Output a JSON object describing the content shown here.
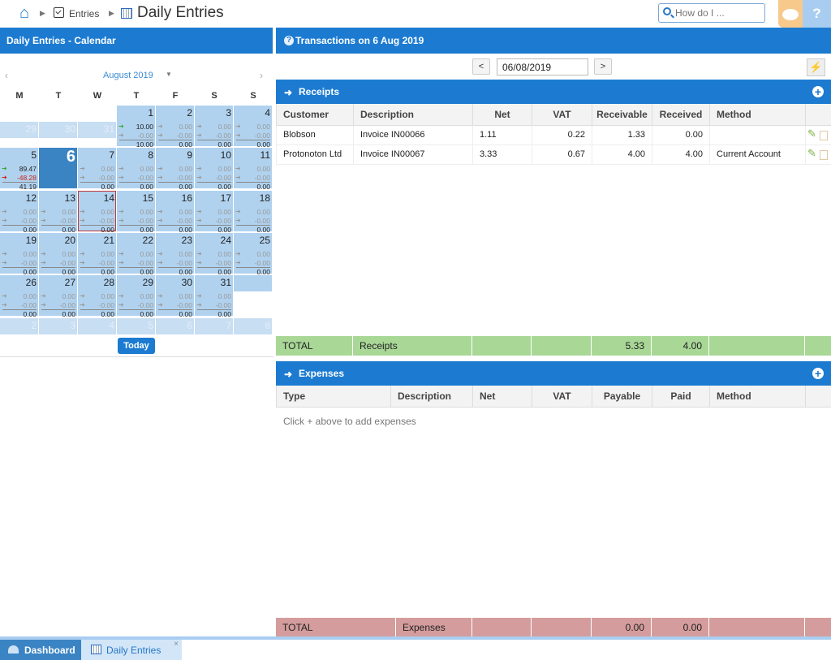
{
  "breadcrumb": {
    "entries_label": "Entries",
    "title": "Daily Entries"
  },
  "search": {
    "placeholder": "How do I ..."
  },
  "help_label": "?",
  "calendar": {
    "header": "Daily Entries - Calendar",
    "prev": "‹",
    "next": "›",
    "month_label": "August 2019",
    "weekdays": [
      "M",
      "T",
      "W",
      "T",
      "F",
      "S",
      "S"
    ],
    "today_button": "Today",
    "prev_month_days": [
      "29",
      "30",
      "31"
    ],
    "next_month_days": [
      "2",
      "3",
      "4",
      "5",
      "6",
      "7",
      "8"
    ],
    "days": [
      {
        "d": "1",
        "in": "10.00",
        "out": "-0.00",
        "tot": "10.00",
        "in_active": true
      },
      {
        "d": "2",
        "in": "0.00",
        "out": "-0.00",
        "tot": "0.00"
      },
      {
        "d": "3",
        "in": "0.00",
        "out": "-0.00",
        "tot": "0.00"
      },
      {
        "d": "4",
        "in": "0.00",
        "out": "-0.00",
        "tot": "0.00"
      },
      {
        "d": "5",
        "in": "89.47",
        "out": "-48.28",
        "tot": "41.19",
        "in_active": true,
        "out_active": true
      },
      {
        "d": "6",
        "today": true
      },
      {
        "d": "7",
        "in": "0.00",
        "out": "-0.00",
        "tot": "0.00"
      },
      {
        "d": "8",
        "in": "0.00",
        "out": "-0.00",
        "tot": "0.00"
      },
      {
        "d": "9",
        "in": "0.00",
        "out": "-0.00",
        "tot": "0.00"
      },
      {
        "d": "10",
        "in": "0.00",
        "out": "-0.00",
        "tot": "0.00"
      },
      {
        "d": "11",
        "in": "0.00",
        "out": "-0.00",
        "tot": "0.00"
      },
      {
        "d": "12",
        "in": "0.00",
        "out": "-0.00",
        "tot": "0.00"
      },
      {
        "d": "13",
        "in": "0.00",
        "out": "-0.00",
        "tot": "0.00"
      },
      {
        "d": "14",
        "in": "0.00",
        "out": "-0.00",
        "tot": "0.00",
        "selected": true
      },
      {
        "d": "15",
        "in": "0.00",
        "out": "-0.00",
        "tot": "0.00"
      },
      {
        "d": "16",
        "in": "0.00",
        "out": "-0.00",
        "tot": "0.00"
      },
      {
        "d": "17",
        "in": "0.00",
        "out": "-0.00",
        "tot": "0.00"
      },
      {
        "d": "18",
        "in": "0.00",
        "out": "-0.00",
        "tot": "0.00"
      },
      {
        "d": "19",
        "in": "0.00",
        "out": "-0.00",
        "tot": "0.00"
      },
      {
        "d": "20",
        "in": "0.00",
        "out": "-0.00",
        "tot": "0.00"
      },
      {
        "d": "21",
        "in": "0.00",
        "out": "-0.00",
        "tot": "0.00"
      },
      {
        "d": "22",
        "in": "0.00",
        "out": "-0.00",
        "tot": "0.00"
      },
      {
        "d": "23",
        "in": "0.00",
        "out": "-0.00",
        "tot": "0.00"
      },
      {
        "d": "24",
        "in": "0.00",
        "out": "-0.00",
        "tot": "0.00"
      },
      {
        "d": "25",
        "in": "0.00",
        "out": "-0.00",
        "tot": "0.00"
      },
      {
        "d": "26",
        "in": "0.00",
        "out": "-0.00",
        "tot": "0.00"
      },
      {
        "d": "27",
        "in": "0.00",
        "out": "-0.00",
        "tot": "0.00"
      },
      {
        "d": "28",
        "in": "0.00",
        "out": "-0.00",
        "tot": "0.00"
      },
      {
        "d": "29",
        "in": "0.00",
        "out": "-0.00",
        "tot": "0.00"
      },
      {
        "d": "30",
        "in": "0.00",
        "out": "-0.00",
        "tot": "0.00"
      },
      {
        "d": "31",
        "in": "0.00",
        "out": "-0.00",
        "tot": "0.00"
      }
    ]
  },
  "transactions": {
    "header": "Transactions on 6 Aug 2019",
    "prev_label": "<",
    "next_label": ">",
    "date_value": "06/08/2019"
  },
  "receipts": {
    "title": "Receipts",
    "columns": [
      "Customer",
      "Description",
      "Net",
      "VAT",
      "Receivable",
      "Received",
      "Method"
    ],
    "rows": [
      {
        "customer": "Blobson",
        "description": "Invoice IN00066",
        "net": "1.11",
        "vat": "0.22",
        "receivable": "1.33",
        "received": "0.00",
        "method": ""
      },
      {
        "customer": "Protonoton Ltd",
        "description": "Invoice IN00067",
        "net": "3.33",
        "vat": "0.67",
        "receivable": "4.00",
        "received": "4.00",
        "method": "Current Account"
      }
    ],
    "total": {
      "label": "TOTAL",
      "name": "Receipts",
      "receivable": "5.33",
      "received": "4.00"
    }
  },
  "expenses": {
    "title": "Expenses",
    "columns": [
      "Type",
      "Description",
      "Net",
      "VAT",
      "Payable",
      "Paid",
      "Method"
    ],
    "empty_text": "Click + above to add expenses",
    "total": {
      "label": "TOTAL",
      "name": "Expenses",
      "payable": "0.00",
      "paid": "0.00"
    }
  },
  "tabs": {
    "dashboard": "Dashboard",
    "daily": "Daily Entries",
    "close": "×"
  },
  "colors": {
    "primary": "#1c7bd1",
    "receipts_total": "#a8d796",
    "expenses_total": "#d49c9c",
    "calendar_cell": "#b0d2ef",
    "today_cell": "#3a84c4"
  }
}
